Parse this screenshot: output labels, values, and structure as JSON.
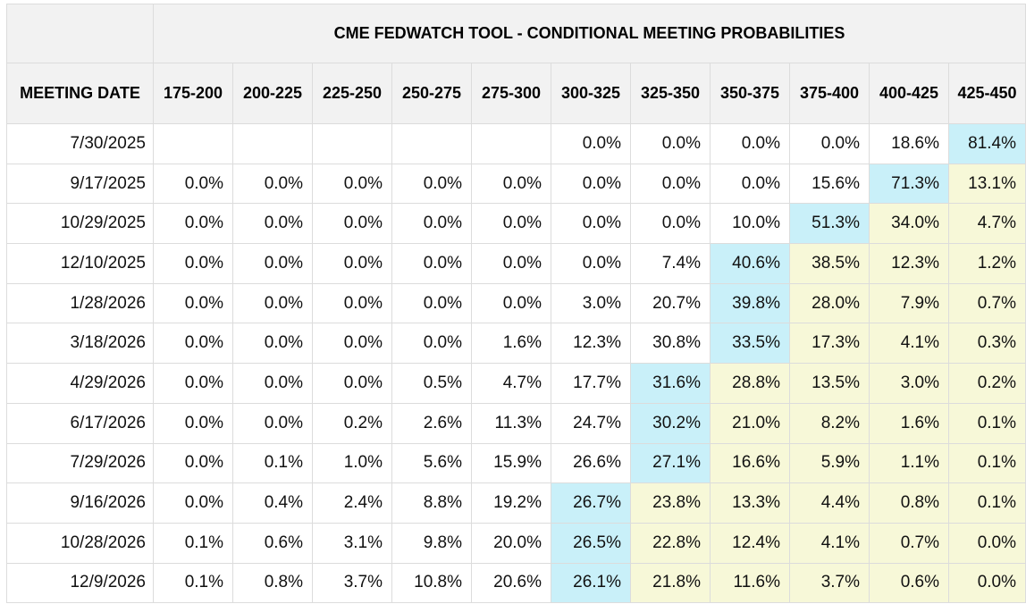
{
  "title": "CME FEDWATCH TOOL - CONDITIONAL MEETING PROBABILITIES",
  "columns": [
    "MEETING DATE",
    "175-200",
    "200-225",
    "225-250",
    "250-275",
    "275-300",
    "300-325",
    "325-350",
    "350-375",
    "375-400",
    "400-425",
    "425-450"
  ],
  "rows": [
    {
      "date": "7/30/2025",
      "values": [
        "",
        "",
        "",
        "",
        "",
        "0.0%",
        "0.0%",
        "0.0%",
        "0.0%",
        "18.6%",
        "81.4%"
      ],
      "max_index": 10
    },
    {
      "date": "9/17/2025",
      "values": [
        "0.0%",
        "0.0%",
        "0.0%",
        "0.0%",
        "0.0%",
        "0.0%",
        "0.0%",
        "0.0%",
        "15.6%",
        "71.3%",
        "13.1%"
      ],
      "max_index": 9
    },
    {
      "date": "10/29/2025",
      "values": [
        "0.0%",
        "0.0%",
        "0.0%",
        "0.0%",
        "0.0%",
        "0.0%",
        "0.0%",
        "10.0%",
        "51.3%",
        "34.0%",
        "4.7%"
      ],
      "max_index": 8
    },
    {
      "date": "12/10/2025",
      "values": [
        "0.0%",
        "0.0%",
        "0.0%",
        "0.0%",
        "0.0%",
        "0.0%",
        "7.4%",
        "40.6%",
        "38.5%",
        "12.3%",
        "1.2%"
      ],
      "max_index": 7
    },
    {
      "date": "1/28/2026",
      "values": [
        "0.0%",
        "0.0%",
        "0.0%",
        "0.0%",
        "0.0%",
        "3.0%",
        "20.7%",
        "39.8%",
        "28.0%",
        "7.9%",
        "0.7%"
      ],
      "max_index": 7
    },
    {
      "date": "3/18/2026",
      "values": [
        "0.0%",
        "0.0%",
        "0.0%",
        "0.0%",
        "1.6%",
        "12.3%",
        "30.8%",
        "33.5%",
        "17.3%",
        "4.1%",
        "0.3%"
      ],
      "max_index": 7
    },
    {
      "date": "4/29/2026",
      "values": [
        "0.0%",
        "0.0%",
        "0.0%",
        "0.5%",
        "4.7%",
        "17.7%",
        "31.6%",
        "28.8%",
        "13.5%",
        "3.0%",
        "0.2%"
      ],
      "max_index": 6
    },
    {
      "date": "6/17/2026",
      "values": [
        "0.0%",
        "0.0%",
        "0.2%",
        "2.6%",
        "11.3%",
        "24.7%",
        "30.2%",
        "21.0%",
        "8.2%",
        "1.6%",
        "0.1%"
      ],
      "max_index": 6
    },
    {
      "date": "7/29/2026",
      "values": [
        "0.0%",
        "0.1%",
        "1.0%",
        "5.6%",
        "15.9%",
        "26.6%",
        "27.1%",
        "16.6%",
        "5.9%",
        "1.1%",
        "0.1%"
      ],
      "max_index": 6
    },
    {
      "date": "9/16/2026",
      "values": [
        "0.0%",
        "0.4%",
        "2.4%",
        "8.8%",
        "19.2%",
        "26.7%",
        "23.8%",
        "13.3%",
        "4.4%",
        "0.8%",
        "0.1%"
      ],
      "max_index": 5
    },
    {
      "date": "10/28/2026",
      "values": [
        "0.1%",
        "0.6%",
        "3.1%",
        "9.8%",
        "20.0%",
        "26.5%",
        "22.8%",
        "12.4%",
        "4.1%",
        "0.7%",
        "0.0%"
      ],
      "max_index": 5
    },
    {
      "date": "12/9/2026",
      "values": [
        "0.1%",
        "0.8%",
        "3.7%",
        "10.8%",
        "20.6%",
        "26.1%",
        "21.8%",
        "11.6%",
        "3.7%",
        "0.6%",
        "0.0%"
      ],
      "max_index": 5
    }
  ],
  "colors": {
    "highlight_max": "#c9f0f9",
    "highlight_after": "#f7f8d8",
    "header_bg": "#f2f2f2",
    "border": "#dcdcdc"
  }
}
